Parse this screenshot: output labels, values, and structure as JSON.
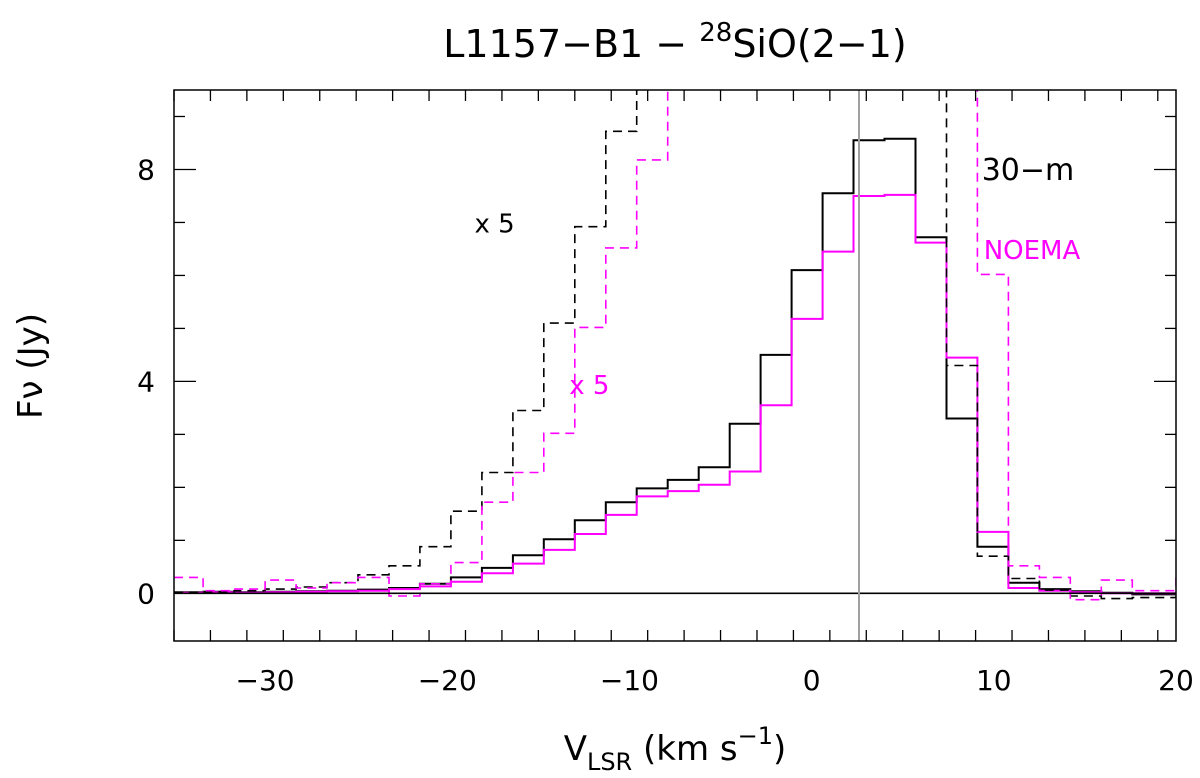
{
  "chart_data": {
    "type": "line",
    "title": {
      "main": "L1157−B1  −  ",
      "sup": "28",
      "rest": "SiO(2−1)"
    },
    "xlabel": {
      "main": "V",
      "sub": "LSR",
      "units": " (km s",
      "sup": "−1",
      "close": ")"
    },
    "ylabel": "Fν (Jy)",
    "xlim": [
      -35,
      20
    ],
    "ylim": [
      -0.9,
      9.5
    ],
    "xticks": [
      -30,
      -20,
      -10,
      0,
      10,
      20
    ],
    "xtick_labels": [
      "−30",
      "−20",
      "−10",
      "0",
      "10",
      "20"
    ],
    "yticks": [
      0,
      4,
      8
    ],
    "ytick_labels": [
      "0",
      "4",
      "8"
    ],
    "vline_x": 2.6,
    "hline_y": 0,
    "legend": [
      {
        "name": "30-m",
        "label": "30−m",
        "color": "#000000"
      },
      {
        "name": "NOEMA",
        "label": "NOEMA",
        "color": "#ff00ff"
      }
    ],
    "annotations": [
      {
        "text": "x 5",
        "color": "#000000",
        "x": -17.4,
        "y": 7.0
      },
      {
        "text": "x 5",
        "color": "#ff00ff",
        "x": -12.2,
        "y": 3.95
      }
    ],
    "series": [
      {
        "name": "30-m",
        "color": "#000000",
        "dashed": false,
        "edges": [
          -35,
          -33.4,
          -31.7,
          -30,
          -28.3,
          -26.6,
          -24.9,
          -23.2,
          -21.5,
          -19.8,
          -18.1,
          -16.4,
          -14.7,
          -13,
          -11.3,
          -9.6,
          -7.9,
          -6.2,
          -4.5,
          -2.8,
          -1.1,
          0.6,
          2.3,
          4.0,
          5.7,
          7.4,
          9.1,
          10.8,
          12.5,
          14.2,
          15.9,
          17.6,
          20
        ],
        "values": [
          0.02,
          0.03,
          0.02,
          0.03,
          0.04,
          0.05,
          0.07,
          0.1,
          0.18,
          0.3,
          0.48,
          0.72,
          1.02,
          1.38,
          1.72,
          1.98,
          2.14,
          2.38,
          3.2,
          4.5,
          6.1,
          7.55,
          8.55,
          8.58,
          6.72,
          3.3,
          0.88,
          0.2,
          0.08,
          0.04,
          0.01,
          -0.02,
          -0.03
        ]
      },
      {
        "name": "NOEMA",
        "color": "#ff00ff",
        "dashed": false,
        "edges": [
          -35,
          -33.4,
          -31.7,
          -30,
          -28.3,
          -26.6,
          -24.9,
          -23.2,
          -21.5,
          -19.8,
          -18.1,
          -16.4,
          -14.7,
          -13,
          -11.3,
          -9.6,
          -7.9,
          -6.2,
          -4.5,
          -2.8,
          -1.1,
          0.6,
          2.3,
          4.0,
          5.7,
          7.4,
          9.1,
          10.8,
          12.5,
          14.2,
          15.9,
          17.6,
          20
        ],
        "values": [
          0.01,
          0.02,
          0.01,
          0.02,
          0.03,
          0.04,
          0.05,
          0.08,
          0.13,
          0.22,
          0.38,
          0.56,
          0.82,
          1.12,
          1.48,
          1.83,
          1.93,
          2.05,
          2.3,
          3.55,
          5.18,
          6.45,
          7.5,
          7.52,
          6.62,
          4.45,
          1.16,
          0.1,
          0.05,
          0.02,
          0.0,
          0.0,
          0.02
        ]
      },
      {
        "name": "30-m x5",
        "color": "#000000",
        "dashed": true,
        "edges": [
          -35,
          -33.4,
          -31.7,
          -30,
          -28.3,
          -26.6,
          -24.9,
          -23.2,
          -21.5,
          -19.8,
          -18.1,
          -16.4,
          -14.7,
          -13,
          -11.3,
          -9.6,
          -7.9,
          -6.2,
          -4.5,
          -2.8,
          -1.1,
          0.6,
          2.3,
          4.0,
          5.7,
          7.4,
          9.1,
          10.8,
          12.5,
          14.2,
          15.9,
          17.6,
          20
        ],
        "values": [
          0.02,
          0.03,
          0.05,
          0.08,
          0.12,
          0.2,
          0.35,
          0.52,
          0.88,
          1.55,
          2.28,
          3.45,
          5.1,
          6.92,
          8.72,
          9.8,
          9.8,
          9.8,
          9.8,
          9.8,
          9.8,
          9.8,
          9.8,
          9.8,
          9.8,
          4.3,
          0.7,
          0.28,
          0.06,
          -0.05,
          -0.1,
          -0.08,
          -0.05
        ]
      },
      {
        "name": "NOEMA x5",
        "color": "#ff00ff",
        "dashed": true,
        "edges": [
          -35,
          -33.4,
          -31.7,
          -30,
          -28.3,
          -26.6,
          -24.9,
          -23.2,
          -21.5,
          -19.8,
          -18.1,
          -16.4,
          -14.7,
          -13,
          -11.3,
          -9.6,
          -7.9,
          -6.2,
          -4.5,
          -2.8,
          -1.1,
          0.6,
          2.3,
          4.0,
          5.7,
          7.4,
          9.1,
          10.8,
          12.5,
          14.2,
          15.9,
          17.6,
          20
        ],
        "values": [
          0.3,
          0.05,
          0.08,
          0.25,
          0.1,
          0.2,
          0.3,
          -0.05,
          0.18,
          0.58,
          1.72,
          2.28,
          3.02,
          5.02,
          6.52,
          8.18,
          9.8,
          9.8,
          9.8,
          9.8,
          9.8,
          9.8,
          9.8,
          9.8,
          9.8,
          9.8,
          6.02,
          0.52,
          0.3,
          -0.12,
          0.25,
          0.05,
          0.4
        ]
      }
    ]
  }
}
